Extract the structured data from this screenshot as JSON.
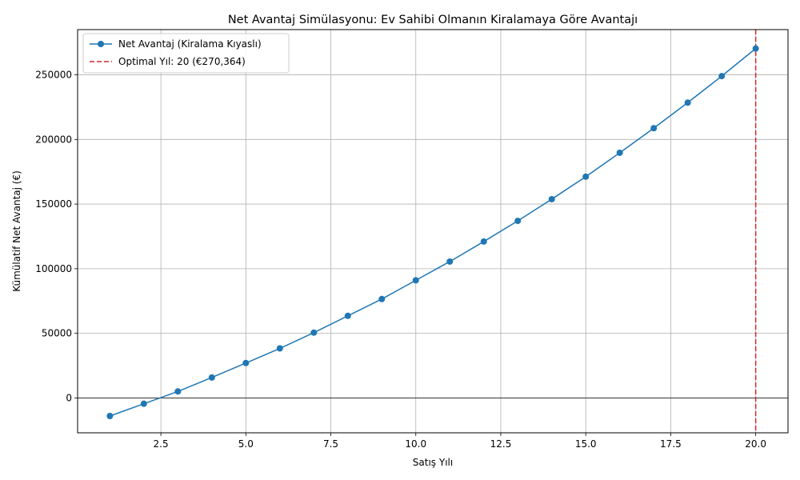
{
  "chart_data": {
    "type": "line",
    "title": "Net Avantaj Simülasyonu: Ev Sahibi Olmanın Kiralamaya Göre Avantajı",
    "xlabel": "Satış Yılı",
    "ylabel": "Kümülatif Net Avantaj (€)",
    "xlim": [
      0.05,
      20.95
    ],
    "ylim": [
      -27000,
      285000
    ],
    "xticks": [
      2.5,
      5.0,
      7.5,
      10.0,
      12.5,
      15.0,
      17.5,
      20.0
    ],
    "xtick_labels": [
      "2.5",
      "5.0",
      "7.5",
      "10.0",
      "12.5",
      "15.0",
      "17.5",
      "20.0"
    ],
    "yticks": [
      0,
      50000,
      100000,
      150000,
      200000,
      250000
    ],
    "ytick_labels": [
      "0",
      "50000",
      "100000",
      "150000",
      "200000",
      "250000"
    ],
    "grid": true,
    "legend_position": "top-left",
    "series": [
      {
        "name": "Net Avantaj (Kiralama Kıyaslı)",
        "color": "#1f77b4",
        "marker": "circle",
        "x": [
          1,
          2,
          3,
          4,
          5,
          6,
          7,
          8,
          9,
          10,
          11,
          12,
          13,
          14,
          15,
          16,
          17,
          18,
          19,
          20
        ],
        "y": [
          -14000,
          -4500,
          5000,
          15800,
          27000,
          38300,
          50500,
          63500,
          76500,
          91000,
          105500,
          121000,
          137000,
          153800,
          171200,
          189700,
          208700,
          228500,
          249000,
          270364
        ]
      }
    ],
    "reference_lines": [
      {
        "orientation": "horizontal",
        "value": 0,
        "color": "#000000",
        "style": "solid"
      },
      {
        "orientation": "vertical",
        "value": 20,
        "color": "#d62728",
        "style": "dashed",
        "label": "Optimal Yıl: 20 (€270,364)"
      }
    ]
  }
}
